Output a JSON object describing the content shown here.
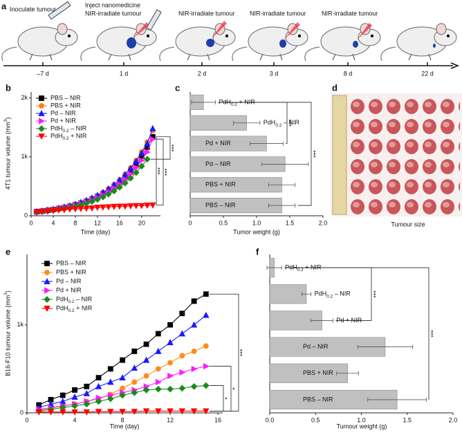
{
  "timeline": {
    "panel_label": "a",
    "events": [
      {
        "text": [
          "Inoculate tumour"
        ],
        "day": "–7 d"
      },
      {
        "text": [
          "Inject nanomedicine",
          "NIR-irradiate tumour"
        ],
        "day": "1 d"
      },
      {
        "text": [
          "NIR-irradiate tumour"
        ],
        "day": "2 d"
      },
      {
        "text": [
          "NIR-irradiate tumour"
        ],
        "day": "3 d"
      },
      {
        "text": [
          "NIR-irradiate tumour"
        ],
        "day": "8 d"
      },
      {
        "text": [],
        "day": "22 d"
      }
    ]
  },
  "photo": {
    "panel_label": "d",
    "caption": "Tumour size"
  },
  "chart_data": [
    {
      "type": "line",
      "panel_label": "b",
      "xlabel": "Time (day)",
      "ylabel": "4T1 tumour volume (mm3)",
      "x": [
        1,
        2,
        3,
        4,
        5,
        6,
        7,
        8,
        9,
        10,
        11,
        12,
        13,
        14,
        15,
        16,
        17,
        18,
        19,
        20,
        21,
        22
      ],
      "series": [
        {
          "name": "PBS – NIR",
          "color": "#000000",
          "marker": "square",
          "values": [
            70,
            81,
            93,
            107,
            123,
            141,
            162,
            187,
            215,
            247,
            285,
            328,
            377,
            434,
            500,
            575,
            662,
            762,
            877,
            1010,
            1162,
            1340
          ]
        },
        {
          "name": "PBS + NIR",
          "color": "#ff7f0e",
          "marker": "circle",
          "values": [
            70,
            81,
            93,
            108,
            125,
            144,
            166,
            192,
            222,
            256,
            296,
            342,
            395,
            456,
            527,
            609,
            703,
            812,
            938,
            1083,
            1251,
            1445
          ]
        },
        {
          "name": "Pd – NIR",
          "color": "#1a1aff",
          "marker": "triangle-up",
          "values": [
            75,
            86,
            99,
            114,
            131,
            151,
            173,
            199,
            229,
            263,
            303,
            348,
            400,
            460,
            529,
            609,
            700,
            805,
            926,
            1065,
            1225,
            1480
          ]
        },
        {
          "name": "Pd + NIR",
          "color": "#ff1aff",
          "marker": "triangle-right",
          "values": [
            65,
            75,
            87,
            100,
            115,
            132,
            152,
            175,
            201,
            231,
            266,
            306,
            352,
            405,
            466,
            536,
            617,
            710,
            816,
            939,
            1080,
            1300
          ]
        },
        {
          "name": "PdH0.2 – NIR",
          "color": "#1a8a1a",
          "marker": "diamond",
          "values": [
            60,
            69,
            79,
            91,
            105,
            120,
            138,
            159,
            183,
            210,
            241,
            277,
            318,
            366,
            420,
            483,
            555,
            638,
            733,
            842,
            960,
            null
          ]
        },
        {
          "name": "PdH0.2 + NIR",
          "color": "#ff0000",
          "marker": "triangle-down",
          "values": [
            60,
            70,
            75,
            85,
            95,
            100,
            110,
            115,
            120,
            125,
            130,
            140,
            145,
            150,
            155,
            160,
            160,
            165,
            170,
            170,
            175,
            180
          ]
        }
      ],
      "xlim": [
        0,
        23.4
      ],
      "ylim": [
        0,
        2100
      ],
      "xticks": [
        0,
        4,
        8,
        12,
        16,
        20
      ],
      "yticks": [
        0,
        {
          "value": 1000,
          "label": "1k"
        },
        {
          "value": 2000,
          "label": "2k"
        }
      ],
      "legend": "upper left",
      "annotations": [
        "***",
        "***",
        "***"
      ]
    },
    {
      "type": "bar",
      "orientation": "horizontal",
      "panel_label": "c",
      "xlabel": "Tumor weight (g)",
      "categories": [
        "PdH0.2 + NIR",
        "PdH0.2 – NIR",
        "Pd + NIR",
        "Pd – NIR",
        "PBS + NIR",
        "PBS – NIR"
      ],
      "values": [
        0.2,
        0.85,
        1.15,
        1.43,
        1.38,
        1.38
      ],
      "errors": [
        0.18,
        0.2,
        0.25,
        0.35,
        0.2,
        0.2
      ],
      "color": "#c0c0c0",
      "xlim": [
        0,
        2
      ],
      "xticks": [
        0,
        0.5,
        {
          "value": 1,
          "label": "1.0"
        },
        1.5,
        {
          "value": 2,
          "label": "2.0"
        }
      ],
      "annotations": [
        "***",
        "***"
      ]
    },
    {
      "type": "line",
      "panel_label": "e",
      "xlabel": "Time (day)",
      "ylabel": "B16-F10 tumour volume (mm3)",
      "x": [
        1,
        2,
        3,
        4,
        5,
        6,
        7,
        8,
        9,
        10,
        11,
        12,
        13,
        14,
        15
      ],
      "series": [
        {
          "name": "PBS – NIR",
          "color": "#000000",
          "marker": "square",
          "values": [
            90,
            150,
            200,
            260,
            300,
            400,
            500,
            600,
            700,
            780,
            900,
            1000,
            1130,
            1270,
            1350
          ]
        },
        {
          "name": "PBS + NIR",
          "color": "#ff8c1a",
          "marker": "circle",
          "values": [
            30,
            50,
            80,
            100,
            130,
            160,
            210,
            280,
            350,
            420,
            500,
            570,
            650,
            700,
            760
          ]
        },
        {
          "name": "Pd – NIR",
          "color": "#1a1aff",
          "marker": "triangle-up",
          "values": [
            60,
            100,
            130,
            180,
            220,
            300,
            350,
            400,
            510,
            600,
            700,
            800,
            900,
            1000,
            1110
          ]
        },
        {
          "name": "Pd + NIR",
          "color": "#ff1aff",
          "marker": "triangle-right",
          "values": [
            40,
            60,
            80,
            100,
            130,
            170,
            200,
            230,
            260,
            300,
            350,
            420,
            460,
            500,
            530
          ]
        },
        {
          "name": "PdH0.2 – NIR",
          "color": "#1a8a1a",
          "marker": "diamond",
          "values": [
            20,
            40,
            60,
            80,
            100,
            130,
            160,
            200,
            230,
            260,
            270,
            270,
            280,
            300,
            310
          ]
        },
        {
          "name": "PdH0.2 + NIR",
          "color": "#ff0000",
          "marker": "triangle-down",
          "values": [
            10,
            10,
            10,
            10,
            10,
            15,
            15,
            15,
            15,
            20,
            20,
            20,
            20,
            20,
            20
          ]
        }
      ],
      "xlim": [
        0,
        16.4
      ],
      "ylim": [
        0,
        1800
      ],
      "xticks": [
        0,
        4,
        8,
        12,
        16
      ],
      "yticks": [
        0,
        {
          "value": 1000,
          "label": "1k"
        }
      ],
      "legend": "upper left",
      "annotations": [
        "***",
        "*",
        "*"
      ]
    },
    {
      "type": "bar",
      "orientation": "horizontal",
      "panel_label": "f",
      "xlabel": "Tumour weight (g)",
      "categories": [
        "PdH0.2 + NIR",
        "PdH0.2 – NIR",
        "Pd + NIR",
        "Pd – NIR",
        "PBS + NIR",
        "PBS – NIR"
      ],
      "values": [
        0.05,
        0.4,
        0.57,
        1.26,
        0.85,
        1.39
      ],
      "errors": [
        0.08,
        0.05,
        0.12,
        0.3,
        0.12,
        0.32
      ],
      "color": "#c0c0c0",
      "xlim": [
        0,
        2
      ],
      "xticks": [
        {
          "value": 0,
          "label": "0.0"
        },
        0.5,
        {
          "value": 1,
          "label": "1.0"
        },
        1.5,
        {
          "value": 2,
          "label": "2.0"
        }
      ],
      "annotations": [
        "***",
        "***"
      ]
    }
  ]
}
